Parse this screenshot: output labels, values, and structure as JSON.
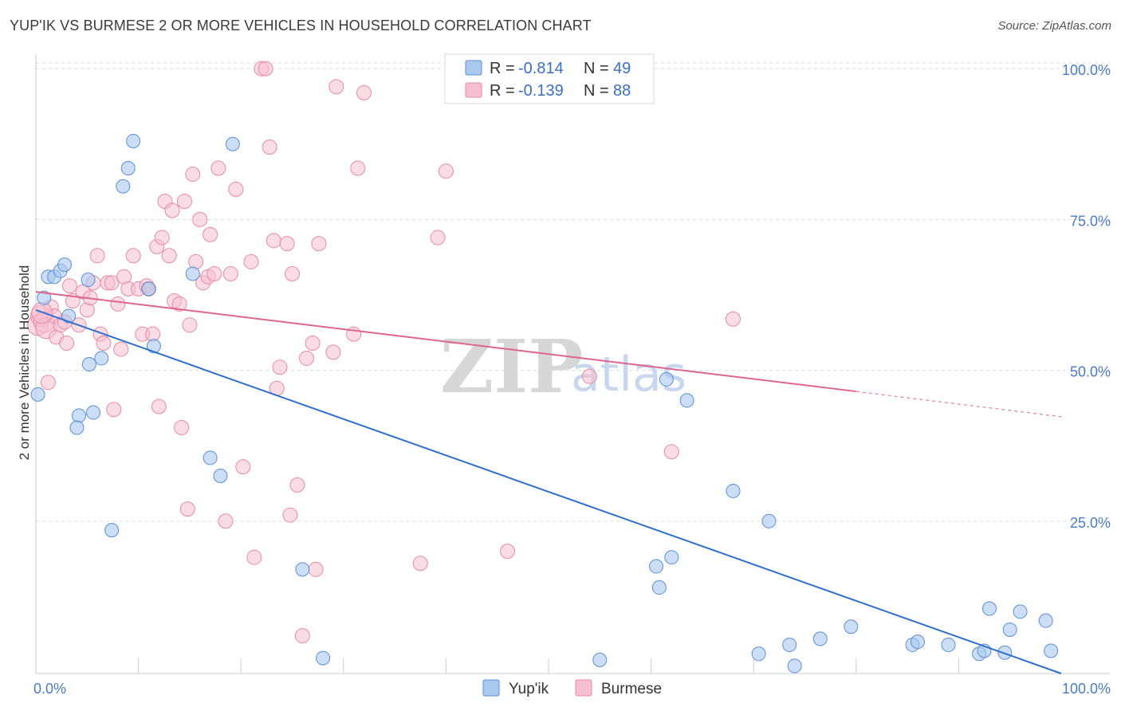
{
  "title": "YUP'IK VS BURMESE 2 OR MORE VEHICLES IN HOUSEHOLD CORRELATION CHART",
  "source": "Source: ZipAtlas.com",
  "watermark": {
    "zip": "ZIP",
    "atlas": "atlas"
  },
  "colors": {
    "yupik_fill": "#a9c8ee",
    "yupik_stroke": "#5b8fd6",
    "yupik_line": "#2f6fd0",
    "burmese_fill": "#f6bfcf",
    "burmese_stroke": "#e88aa6",
    "burmese_line": "#e0648e",
    "grid": "#dddddd",
    "tick_text": "#4a7bc8"
  },
  "legend": {
    "rows": [
      {
        "r_label": "R =",
        "r_value": "-0.814",
        "n_label": "N =",
        "n_value": "49"
      },
      {
        "r_label": "R =",
        "r_value": "-0.139",
        "n_label": "N =",
        "n_value": "88"
      }
    ]
  },
  "bottom_legend": {
    "series1": "Yup'ik",
    "series2": "Burmese"
  },
  "chart_data": {
    "type": "scatter",
    "title": "YUP'IK VS BURMESE 2 OR MORE VEHICLES IN HOUSEHOLD CORRELATION CHART",
    "xlabel": "",
    "ylabel": "2 or more Vehicles in Household",
    "xlim": [
      0,
      100
    ],
    "ylim": [
      0,
      102
    ],
    "x_tick_labels": [
      "0.0%",
      "100.0%"
    ],
    "y_tick_labels": [
      "100.0%",
      "75.0%",
      "50.0%",
      "25.0%"
    ],
    "y_ticks": [
      100,
      75,
      50,
      25
    ],
    "x_minor_ticks": [
      10,
      20,
      30,
      40,
      50,
      60,
      70,
      80,
      90
    ],
    "series": [
      {
        "name": "Yup'ik",
        "r": -0.814,
        "n": 49,
        "trend": {
          "x0": 0,
          "y0": 60.0,
          "x1": 100,
          "y1": 0
        },
        "points": [
          [
            0.2,
            46.0
          ],
          [
            0.8,
            62.0
          ],
          [
            1.2,
            65.5
          ],
          [
            1.8,
            65.5
          ],
          [
            2.4,
            66.5
          ],
          [
            2.8,
            67.5
          ],
          [
            3.2,
            59.0
          ],
          [
            4.2,
            42.5
          ],
          [
            4.0,
            40.5
          ],
          [
            5.2,
            51.0
          ],
          [
            5.6,
            43.0
          ],
          [
            5.1,
            65.0
          ],
          [
            6.4,
            52.0
          ],
          [
            7.4,
            23.5
          ],
          [
            8.5,
            80.5
          ],
          [
            9.0,
            83.5
          ],
          [
            9.5,
            88.0
          ],
          [
            11.0,
            63.5
          ],
          [
            11.5,
            54.0
          ],
          [
            15.3,
            66.0
          ],
          [
            17.0,
            35.5
          ],
          [
            18.0,
            32.5
          ],
          [
            19.2,
            87.5
          ],
          [
            26.0,
            17.0
          ],
          [
            28.0,
            2.3
          ],
          [
            55.0,
            2.0
          ],
          [
            60.5,
            17.5
          ],
          [
            60.8,
            14.0
          ],
          [
            61.5,
            48.5
          ],
          [
            62.0,
            19.0
          ],
          [
            63.5,
            45.0
          ],
          [
            68.0,
            30.0
          ],
          [
            70.5,
            3.0
          ],
          [
            71.5,
            25.0
          ],
          [
            73.5,
            4.5
          ],
          [
            74.0,
            1.0
          ],
          [
            76.5,
            5.5
          ],
          [
            79.5,
            7.5
          ],
          [
            85.5,
            4.5
          ],
          [
            86.0,
            5.0
          ],
          [
            89.0,
            4.5
          ],
          [
            92.0,
            3.0
          ],
          [
            92.5,
            3.5
          ],
          [
            93.0,
            10.5
          ],
          [
            94.5,
            3.2
          ],
          [
            95.0,
            7.0
          ],
          [
            96.0,
            10.0
          ],
          [
            98.5,
            8.5
          ],
          [
            99.0,
            3.5
          ]
        ]
      },
      {
        "name": "Burmese",
        "r": -0.139,
        "n": 88,
        "trend": {
          "x0": 0,
          "y0": 63.0,
          "x1": 80,
          "y1": 46.5,
          "dashed_to_x": 100,
          "dashed_to_y": 42.3
        },
        "points": [
          [
            0.2,
            57.5
          ],
          [
            0.5,
            59.0
          ],
          [
            0.8,
            58.0
          ],
          [
            1.0,
            57.0
          ],
          [
            1.2,
            48.0
          ],
          [
            1.5,
            60.5
          ],
          [
            1.8,
            59.0
          ],
          [
            2.0,
            55.5
          ],
          [
            2.4,
            57.5
          ],
          [
            2.8,
            58.0
          ],
          [
            3.0,
            54.5
          ],
          [
            3.3,
            64.0
          ],
          [
            3.6,
            61.5
          ],
          [
            4.2,
            57.5
          ],
          [
            4.6,
            63.0
          ],
          [
            5.0,
            60.0
          ],
          [
            5.3,
            62.0
          ],
          [
            5.6,
            64.5
          ],
          [
            6.0,
            69.0
          ],
          [
            6.3,
            56.0
          ],
          [
            6.6,
            54.5
          ],
          [
            7.0,
            64.5
          ],
          [
            7.4,
            64.5
          ],
          [
            7.6,
            43.5
          ],
          [
            8.0,
            61.0
          ],
          [
            8.3,
            53.5
          ],
          [
            8.6,
            65.5
          ],
          [
            9.0,
            63.5
          ],
          [
            9.5,
            69.0
          ],
          [
            10.0,
            63.5
          ],
          [
            10.4,
            56.0
          ],
          [
            10.8,
            64.0
          ],
          [
            11.0,
            63.5
          ],
          [
            11.4,
            56.0
          ],
          [
            11.8,
            70.5
          ],
          [
            12.0,
            44.0
          ],
          [
            12.3,
            72.0
          ],
          [
            12.6,
            78.0
          ],
          [
            13.0,
            69.0
          ],
          [
            13.3,
            76.5
          ],
          [
            13.5,
            61.5
          ],
          [
            14.0,
            61.0
          ],
          [
            14.2,
            40.5
          ],
          [
            14.5,
            78.0
          ],
          [
            14.8,
            27.0
          ],
          [
            15.0,
            57.5
          ],
          [
            15.3,
            82.5
          ],
          [
            15.6,
            68.0
          ],
          [
            16.0,
            75.0
          ],
          [
            16.3,
            64.5
          ],
          [
            16.8,
            65.5
          ],
          [
            17.0,
            72.5
          ],
          [
            17.4,
            66.0
          ],
          [
            17.8,
            83.5
          ],
          [
            18.5,
            25.0
          ],
          [
            19.0,
            66.0
          ],
          [
            19.5,
            80.0
          ],
          [
            20.2,
            34.0
          ],
          [
            21.0,
            68.0
          ],
          [
            21.3,
            19.0
          ],
          [
            22.0,
            100.0
          ],
          [
            22.4,
            100.0
          ],
          [
            22.8,
            87.0
          ],
          [
            23.2,
            71.5
          ],
          [
            23.5,
            47.0
          ],
          [
            23.8,
            50.5
          ],
          [
            24.5,
            71.0
          ],
          [
            24.8,
            26.0
          ],
          [
            25.0,
            66.0
          ],
          [
            25.5,
            31.0
          ],
          [
            26.0,
            6.0
          ],
          [
            26.4,
            52.0
          ],
          [
            27.0,
            54.5
          ],
          [
            27.3,
            17.0
          ],
          [
            27.6,
            71.0
          ],
          [
            29.0,
            53.0
          ],
          [
            29.3,
            97.0
          ],
          [
            31.0,
            56.0
          ],
          [
            31.4,
            83.5
          ],
          [
            32.0,
            96.0
          ],
          [
            37.5,
            18.0
          ],
          [
            39.2,
            72.0
          ],
          [
            40.0,
            83.0
          ],
          [
            46.0,
            20.0
          ],
          [
            54.0,
            49.0
          ],
          [
            62.0,
            36.5
          ],
          [
            68.0,
            58.5
          ],
          [
            0.6,
            59.5
          ]
        ]
      }
    ]
  }
}
